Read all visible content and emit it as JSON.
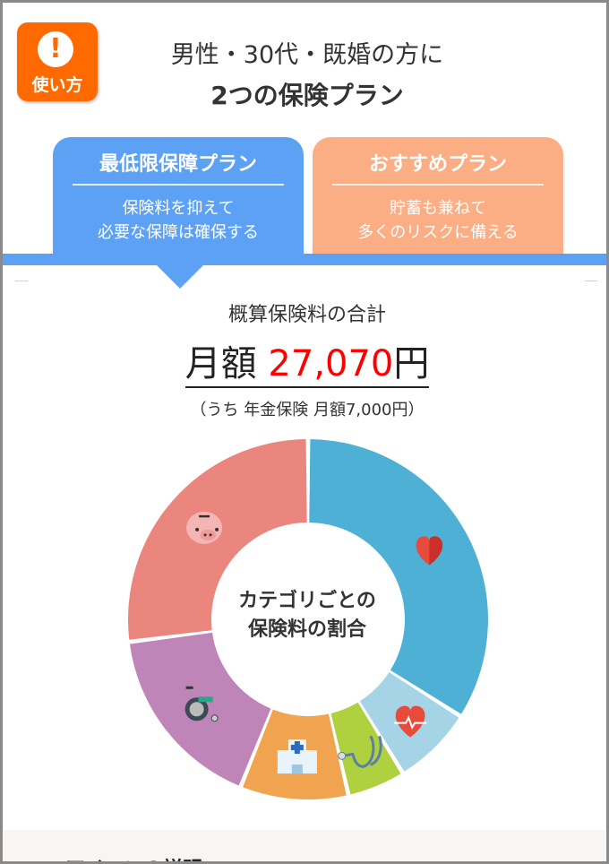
{
  "howto_button": {
    "label": "使い方",
    "icon": "exclamation-bubble-icon"
  },
  "header": {
    "line1": "男性・30代・既婚の方に",
    "line2": "2つの保険プラン"
  },
  "tabs": [
    {
      "name": "最低限保障プラン",
      "desc1": "保険料を抑えて",
      "desc2": "必要な保障は確保する",
      "color": "#5ca1f3",
      "selected": true
    },
    {
      "name": "おすすめプラン",
      "desc1": "貯蓄も兼ねて",
      "desc2": "多くのリスクに備える",
      "color": "#fbad84",
      "selected": false
    }
  ],
  "summary": {
    "label": "概算保険料の合計",
    "prefix": "月額",
    "amount": "27,070",
    "suffix": "円",
    "note": "（うち 年金保険 月額7,000円）"
  },
  "chart_data": {
    "type": "pie",
    "variant": "donut",
    "title": "カテゴリごとの保険料の割合",
    "title_line1": "カテゴリごとの",
    "title_line2": "保険料の割合",
    "unit": "percent",
    "slices": [
      {
        "icon": "heart-icon",
        "value": 34.0,
        "color": "#4fb0d6"
      },
      {
        "icon": "heart-pulse-icon",
        "value": 7.2,
        "color": "#a6d4e7"
      },
      {
        "icon": "stethoscope-icon",
        "value": 5.2,
        "color": "#afd13f"
      },
      {
        "icon": "hospital-icon",
        "value": 9.7,
        "color": "#f1a44f"
      },
      {
        "icon": "wheelchair-icon",
        "value": 16.9,
        "color": "#bf85b8"
      },
      {
        "icon": "piggy-bank-icon",
        "value": 27.0,
        "color": "#ea867e"
      }
    ]
  },
  "footer": {
    "heading": "アイコンの説明"
  }
}
